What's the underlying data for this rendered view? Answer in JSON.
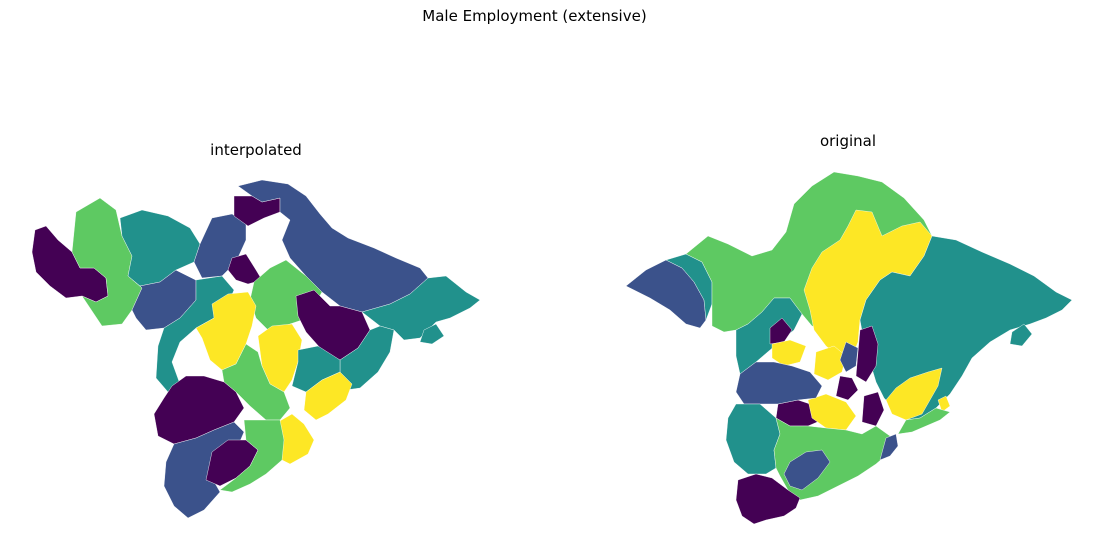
{
  "figure": {
    "title": "Male Employment (extensive)"
  },
  "panels": [
    {
      "title": "interpolated"
    },
    {
      "title": "original"
    }
  ],
  "colormap": {
    "name": "viridis",
    "classes": [
      "#440154",
      "#3b528b",
      "#21918c",
      "#5ec962",
      "#fde725"
    ]
  }
}
